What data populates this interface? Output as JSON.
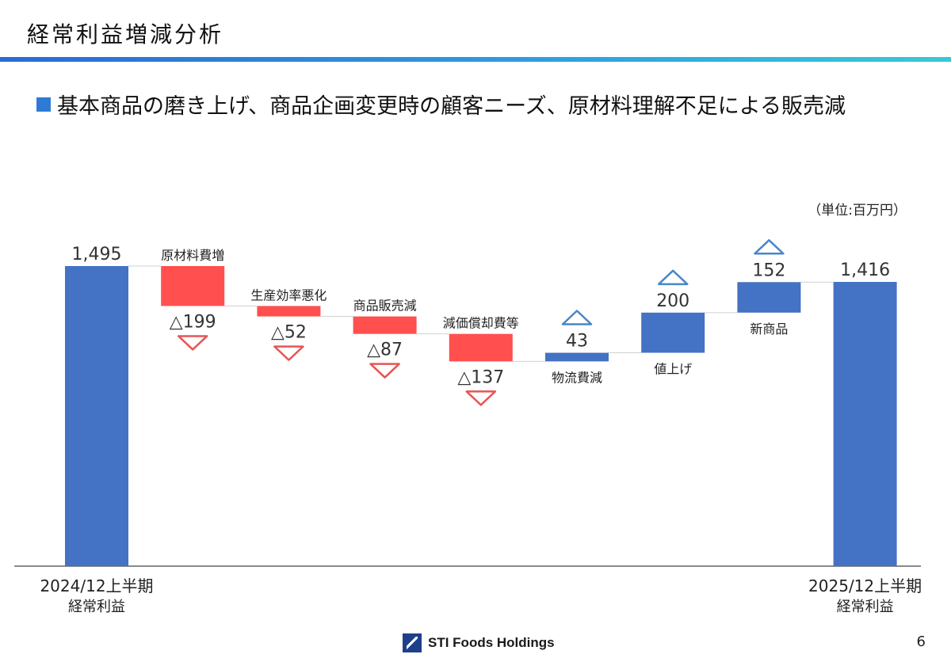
{
  "slide": {
    "title": "経常利益増減分析",
    "headline": "基本商品の磨き上げ、商品企画変更時の顧客ニーズ、原材料理解不足による販売減",
    "unit_note": "（単位:百万円）",
    "logo_text": "STI Foods Holdings",
    "page_number": "6"
  },
  "chart_data": {
    "type": "waterfall",
    "unit": "百万円",
    "colors": {
      "total": "#4472c4",
      "decrease": "#ff4f4f",
      "increase": "#4472c4",
      "down_marker": "#e85454",
      "up_marker": "#4a86c8"
    },
    "steps": [
      {
        "kind": "total",
        "category_lines": [
          "2024/12上半期",
          "経常利益"
        ],
        "value": 1495,
        "value_label": "1,495"
      },
      {
        "kind": "decrease",
        "category": "原材料費増",
        "value": -199,
        "value_label": "△199"
      },
      {
        "kind": "decrease",
        "category": "生産効率悪化",
        "value": -52,
        "value_label": "△52"
      },
      {
        "kind": "decrease",
        "category": "商品販売減",
        "value": -87,
        "value_label": "△87"
      },
      {
        "kind": "decrease",
        "category": "減価償却費等",
        "value": -137,
        "value_label": "△137"
      },
      {
        "kind": "increase",
        "category": "物流費減",
        "value": 43,
        "value_label": "43"
      },
      {
        "kind": "increase",
        "category": "値上げ",
        "value": 200,
        "value_label": "200"
      },
      {
        "kind": "increase",
        "category": "新商品",
        "value": 152,
        "value_label": "152"
      },
      {
        "kind": "total",
        "category_lines": [
          "2025/12上半期",
          "経常利益"
        ],
        "value": 1416,
        "value_label": "1,416"
      }
    ]
  }
}
